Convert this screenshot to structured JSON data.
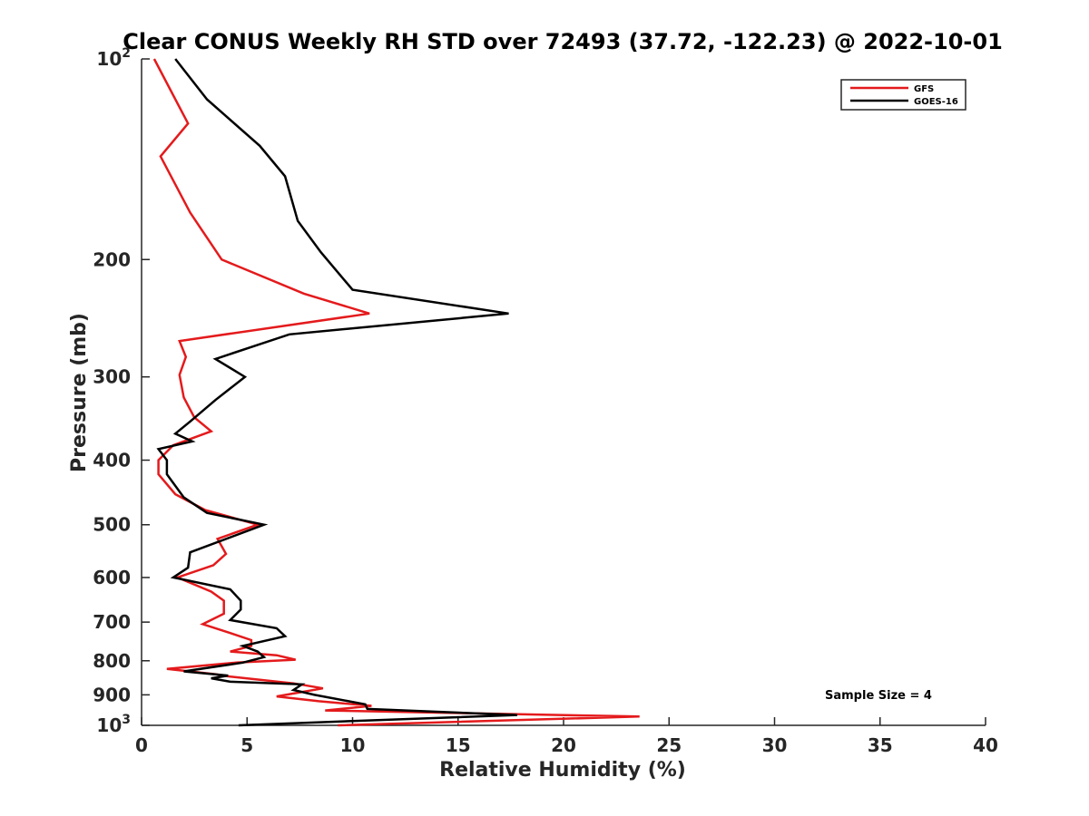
{
  "chart_data": {
    "type": "line",
    "title": "Clear CONUS Weekly RH STD over 72493 (37.72, -122.23) @ 2022-10-01",
    "xlabel": "Relative Humidity (%)",
    "ylabel": "Pressure (mb)",
    "xlim": [
      0,
      40
    ],
    "ylim": [
      100,
      1000
    ],
    "yscale": "log",
    "yreversed": true,
    "xticks": [
      "0",
      "5",
      "10",
      "15",
      "20",
      "25",
      "30",
      "35",
      "40"
    ],
    "yticks": [
      {
        "value": 100,
        "base": "10",
        "exp": "2"
      },
      {
        "value": 200,
        "label": "200"
      },
      {
        "value": 300,
        "label": "300"
      },
      {
        "value": 400,
        "label": "400"
      },
      {
        "value": 500,
        "label": "500"
      },
      {
        "value": 600,
        "label": "600"
      },
      {
        "value": 700,
        "label": "700"
      },
      {
        "value": 800,
        "label": "800"
      },
      {
        "value": 900,
        "label": "900"
      },
      {
        "value": 1000,
        "base": "10",
        "exp": "3"
      }
    ],
    "grid": false,
    "legend_position": "top-right",
    "annotation": "Sample Size = 4",
    "series": [
      {
        "name": "GFS",
        "color": "#e41a1c",
        "points": [
          [
            0.6,
            100
          ],
          [
            2.2,
            125
          ],
          [
            0.9,
            140
          ],
          [
            2.3,
            170
          ],
          [
            3.8,
            200
          ],
          [
            7.7,
            225
          ],
          [
            10.8,
            241
          ],
          [
            1.8,
            265
          ],
          [
            2.1,
            280
          ],
          [
            1.8,
            298
          ],
          [
            2.0,
            322
          ],
          [
            2.5,
            345
          ],
          [
            3.3,
            362
          ],
          [
            1.5,
            380
          ],
          [
            0.8,
            400
          ],
          [
            0.8,
            420
          ],
          [
            1.6,
            450
          ],
          [
            3.0,
            475
          ],
          [
            5.5,
            500
          ],
          [
            3.6,
            525
          ],
          [
            4.0,
            553
          ],
          [
            3.4,
            575
          ],
          [
            1.7,
            600
          ],
          [
            3.3,
            630
          ],
          [
            3.9,
            650
          ],
          [
            3.9,
            680
          ],
          [
            2.9,
            705
          ],
          [
            4.2,
            727
          ],
          [
            5.2,
            745
          ],
          [
            5.2,
            760
          ],
          [
            4.2,
            775
          ],
          [
            6.4,
            785
          ],
          [
            7.3,
            797
          ],
          [
            4.5,
            805
          ],
          [
            1.2,
            823
          ],
          [
            3.5,
            838
          ],
          [
            4.2,
            845
          ],
          [
            7.2,
            865
          ],
          [
            8.6,
            880
          ],
          [
            6.4,
            905
          ],
          [
            8.4,
            920
          ],
          [
            10.9,
            935
          ],
          [
            8.7,
            950
          ],
          [
            23.6,
            970
          ],
          [
            9.3,
            1000
          ]
        ]
      },
      {
        "name": "GOES-16",
        "color": "#000000",
        "points": [
          [
            1.6,
            100
          ],
          [
            3.1,
            115
          ],
          [
            5.6,
            135
          ],
          [
            6.8,
            150
          ],
          [
            7.4,
            175
          ],
          [
            8.5,
            195
          ],
          [
            10.0,
            222
          ],
          [
            17.4,
            241
          ],
          [
            7.0,
            259
          ],
          [
            3.5,
            282
          ],
          [
            4.9,
            300
          ],
          [
            3.5,
            325
          ],
          [
            2.3,
            350
          ],
          [
            1.6,
            365
          ],
          [
            2.4,
            375
          ],
          [
            0.8,
            385
          ],
          [
            1.2,
            400
          ],
          [
            1.2,
            420
          ],
          [
            2.0,
            455
          ],
          [
            3.1,
            480
          ],
          [
            5.8,
            500
          ],
          [
            2.3,
            550
          ],
          [
            2.2,
            580
          ],
          [
            1.5,
            600
          ],
          [
            4.2,
            625
          ],
          [
            4.7,
            650
          ],
          [
            4.7,
            670
          ],
          [
            4.2,
            695
          ],
          [
            6.4,
            715
          ],
          [
            6.8,
            735
          ],
          [
            4.8,
            760
          ],
          [
            5.5,
            775
          ],
          [
            5.8,
            790
          ],
          [
            4.8,
            805
          ],
          [
            2.0,
            830
          ],
          [
            4.1,
            842
          ],
          [
            3.3,
            850
          ],
          [
            4.2,
            860
          ],
          [
            7.6,
            868
          ],
          [
            7.2,
            885
          ],
          [
            8.2,
            900
          ],
          [
            10.6,
            930
          ],
          [
            10.7,
            945
          ],
          [
            17.8,
            965
          ],
          [
            10.0,
            985
          ],
          [
            4.6,
            1000
          ]
        ]
      }
    ]
  }
}
